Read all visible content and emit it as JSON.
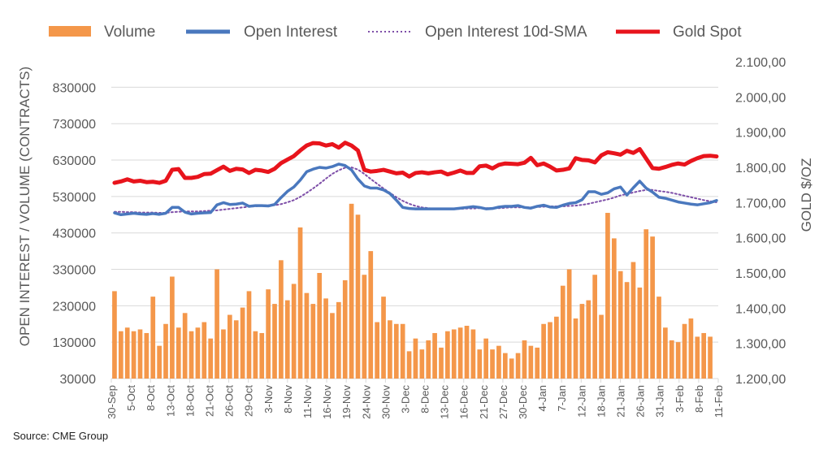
{
  "chart_data": {
    "type": "bar",
    "ylabel": "OPEN INTEREST / VOLUME (CONTRACTS)",
    "y2label": "GOLD $/OZ",
    "ylim": [
      30000,
      900000
    ],
    "yticks": [
      "30000",
      "130000",
      "230000",
      "330000",
      "430000",
      "530000",
      "630000",
      "730000",
      "830000"
    ],
    "y2lim": [
      1200,
      2100
    ],
    "y2ticks": [
      "1.200,00",
      "1.300,00",
      "1.400,00",
      "1.500,00",
      "1.600,00",
      "1.700,00",
      "1.800,00",
      "1.900,00",
      "2.000,00",
      "2.100,00"
    ],
    "grid": true,
    "legend_position": "top",
    "x_tick_labels": [
      "30-Sep",
      "5-Oct",
      "8-Oct",
      "13-Oct",
      "18-Oct",
      "21-Oct",
      "26-Oct",
      "29-Oct",
      "3-Nov",
      "8-Nov",
      "11-Nov",
      "16-Nov",
      "19-Nov",
      "24-Nov",
      "30-Nov",
      "3-Dec",
      "8-Dec",
      "13-Dec",
      "16-Dec",
      "21-Dec",
      "27-Dec",
      "30-Dec",
      "4-Jan",
      "7-Jan",
      "12-Jan",
      "18-Jan",
      "21-Jan",
      "26-Jan",
      "31-Jan",
      "3-Feb",
      "8-Feb",
      "11-Feb"
    ],
    "colors": {
      "volume": "#F4974A",
      "open_interest": "#4A78BE",
      "sma": "#7E4FA8",
      "gold": "#E8141C",
      "grid": "#D9D9D9",
      "axis_text": "#595959"
    },
    "series": [
      {
        "name": "Volume",
        "style": "bar",
        "axis": "left",
        "values": [
          270000,
          160000,
          170000,
          160000,
          165000,
          155000,
          255000,
          120000,
          180000,
          310000,
          170000,
          210000,
          160000,
          170000,
          185000,
          140000,
          330000,
          165000,
          205000,
          190000,
          225000,
          270000,
          160000,
          155000,
          275000,
          235000,
          355000,
          245000,
          290000,
          445000,
          265000,
          235000,
          320000,
          250000,
          210000,
          240000,
          300000,
          510000,
          480000,
          315000,
          380000,
          185000,
          255000,
          190000,
          180000,
          180000,
          105000,
          140000,
          110000,
          135000,
          155000,
          115000,
          160000,
          165000,
          170000,
          175000,
          165000,
          110000,
          140000,
          110000,
          120000,
          100000,
          85000,
          100000,
          135000,
          120000,
          115000,
          180000,
          185000,
          200000,
          285000,
          330000,
          195000,
          235000,
          245000,
          315000,
          205000,
          485000,
          415000,
          325000,
          295000,
          350000,
          280000,
          440000,
          420000,
          255000,
          170000,
          135000,
          130000,
          180000,
          195000,
          145000,
          155000,
          145000
        ]
      },
      {
        "name": "Open Interest",
        "style": "line",
        "axis": "left",
        "values": [
          485000,
          480000,
          482000,
          484000,
          482000,
          481000,
          483000,
          481000,
          484000,
          500000,
          500000,
          487000,
          482000,
          484000,
          485000,
          486000,
          507000,
          513000,
          508000,
          509000,
          512000,
          503000,
          505000,
          505000,
          504000,
          508000,
          527000,
          544000,
          556000,
          575000,
          598000,
          605000,
          610000,
          608000,
          612000,
          619000,
          615000,
          603000,
          578000,
          559000,
          553000,
          553000,
          548000,
          538000,
          520000,
          500000,
          497000,
          496000,
          496000,
          496000,
          496000,
          496000,
          496000,
          496000,
          498000,
          500000,
          502000,
          500000,
          496000,
          497000,
          501000,
          503000,
          503000,
          505000,
          500000,
          498000,
          503000,
          506000,
          501000,
          500000,
          506000,
          511000,
          513000,
          521000,
          543000,
          543000,
          536000,
          540000,
          551000,
          556000,
          534000,
          554000,
          572000,
          553000,
          542000,
          528000,
          525000,
          520000,
          515000,
          512000,
          509000,
          507000,
          510000,
          513000,
          519000
        ]
      },
      {
        "name": "Open Interest 10d-SMA",
        "style": "dotted",
        "axis": "left",
        "values": [
          488000,
          488000,
          487000,
          487000,
          486000,
          486000,
          486000,
          485000,
          485000,
          487000,
          488000,
          489000,
          489000,
          489000,
          490000,
          491000,
          492000,
          494000,
          496000,
          498000,
          500000,
          502000,
          503000,
          505000,
          506000,
          506000,
          509000,
          514000,
          520000,
          529000,
          540000,
          552000,
          565000,
          579000,
          592000,
          602000,
          609000,
          610000,
          604000,
          592000,
          578000,
          565000,
          552000,
          540000,
          528000,
          518000,
          510000,
          504000,
          500000,
          498000,
          496000,
          496000,
          496000,
          496000,
          496000,
          497000,
          497000,
          498000,
          498000,
          498000,
          498000,
          499000,
          500000,
          500000,
          500000,
          500000,
          501000,
          502000,
          503000,
          503000,
          503000,
          504000,
          505000,
          507000,
          510000,
          514000,
          518000,
          522000,
          527000,
          533000,
          537000,
          541000,
          545000,
          548000,
          548000,
          545000,
          543000,
          540000,
          536000,
          532000,
          528000,
          524000,
          520000,
          517000,
          514000
        ]
      },
      {
        "name": "Gold Spot",
        "style": "line",
        "axis": "right",
        "values": [
          1756,
          1760,
          1766,
          1760,
          1762,
          1758,
          1759,
          1756,
          1762,
          1793,
          1795,
          1770,
          1770,
          1773,
          1781,
          1782,
          1792,
          1802,
          1790,
          1796,
          1794,
          1784,
          1793,
          1791,
          1787,
          1796,
          1812,
          1822,
          1832,
          1848,
          1862,
          1869,
          1868,
          1862,
          1866,
          1856,
          1870,
          1862,
          1848,
          1793,
          1788,
          1790,
          1793,
          1788,
          1783,
          1785,
          1774,
          1784,
          1786,
          1783,
          1786,
          1788,
          1780,
          1785,
          1791,
          1784,
          1784,
          1803,
          1805,
          1797,
          1807,
          1811,
          1810,
          1809,
          1813,
          1827,
          1806,
          1811,
          1802,
          1791,
          1793,
          1797,
          1826,
          1821,
          1820,
          1814,
          1834,
          1843,
          1840,
          1836,
          1847,
          1841,
          1852,
          1825,
          1798,
          1796,
          1801,
          1807,
          1811,
          1808,
          1818,
          1826,
          1832,
          1833,
          1831
        ]
      }
    ]
  },
  "source": "Source: CME Group"
}
